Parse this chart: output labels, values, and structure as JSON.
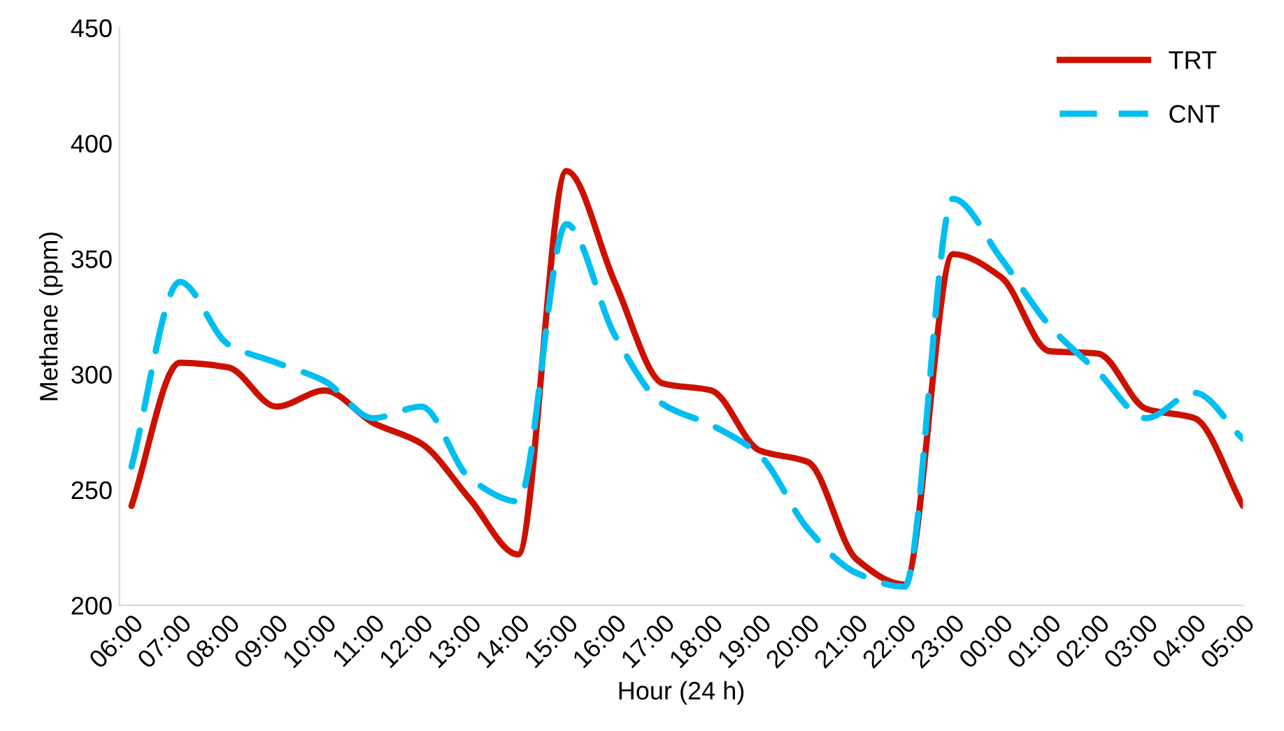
{
  "chart_data": {
    "type": "line",
    "xlabel": "Hour (24 h)",
    "ylabel": "Methane (ppm)",
    "categories": [
      "06:00",
      "07:00",
      "08:00",
      "09:00",
      "10:00",
      "11:00",
      "12:00",
      "13:00",
      "14:00",
      "15:00",
      "16:00",
      "17:00",
      "18:00",
      "19:00",
      "20:00",
      "21:00",
      "22:00",
      "23:00",
      "00:00",
      "01:00",
      "02:00",
      "03:00",
      "04:00",
      "05:00"
    ],
    "series": [
      {
        "name": "TRT",
        "color": "#cc1100",
        "line_style": "solid",
        "values": [
          243,
          305,
          303,
          286,
          293,
          279,
          270,
          246,
          222,
          388,
          340,
          296,
          293,
          267,
          262,
          220,
          209,
          352,
          342,
          310,
          309,
          285,
          281,
          243
        ]
      },
      {
        "name": "CNT",
        "color": "#00bff0",
        "line_style": "dashed",
        "values": [
          260,
          340,
          313,
          305,
          297,
          281,
          286,
          255,
          245,
          365,
          317,
          287,
          278,
          265,
          233,
          214,
          208,
          376,
          350,
          321,
          301,
          281,
          292,
          272
        ]
      }
    ],
    "ylim": [
      200,
      450
    ],
    "yticks": [
      200,
      250,
      300,
      350,
      400,
      450
    ],
    "grid": false,
    "legend": "top right",
    "marker": "none"
  }
}
